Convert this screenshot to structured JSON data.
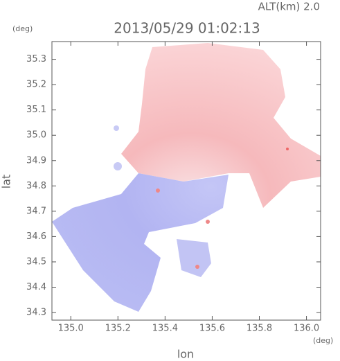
{
  "chart_data": {
    "type": "map",
    "annotation": "ALT(km) 2.0",
    "title": "2013/05/29 01:02:13",
    "y_unit": "(deg)",
    "x_unit": "(deg)",
    "x_label": "lon",
    "y_label": "lat",
    "xlim": [
      134.92,
      136.06
    ],
    "xticks": [
      {
        "value": 135,
        "label": "135.0"
      },
      135.2,
      135.4,
      135.6,
      135.8,
      {
        "value": 136,
        "label": "136.0"
      }
    ],
    "ylim": [
      34.27,
      35.37
    ],
    "yticks": [
      {
        "value": 34.3,
        "label": "34.3"
      },
      34.4,
      34.5,
      34.6,
      34.7,
      34.8,
      34.9,
      {
        "value": 35,
        "label": "35.0"
      },
      35.1,
      35.2,
      35.3
    ]
  }
}
